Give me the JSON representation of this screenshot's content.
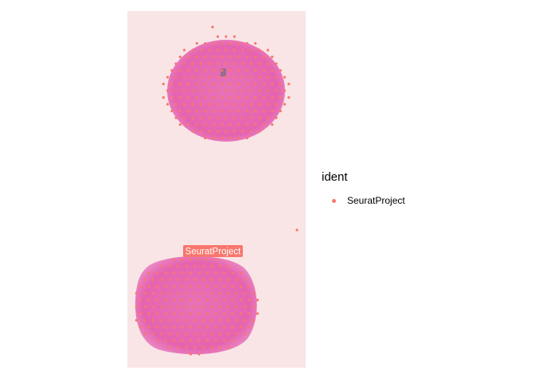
{
  "chart_data": {
    "type": "scatter",
    "title": "",
    "xlabel": "",
    "ylabel": "",
    "axes_visible": false,
    "background": "tissue-image",
    "spot_color": "#F8766D",
    "label_box_color": "#F8766D",
    "label_text_color": "#ffffff",
    "series": [
      {
        "name": "SeuratProject",
        "label": "SeuratProject"
      }
    ],
    "legend": {
      "title": "ident",
      "position": "right"
    }
  },
  "colors": {
    "tissue_background": "#f9e5e6",
    "tissue_pink": "#e25ea9",
    "spot": "#F8766D"
  }
}
